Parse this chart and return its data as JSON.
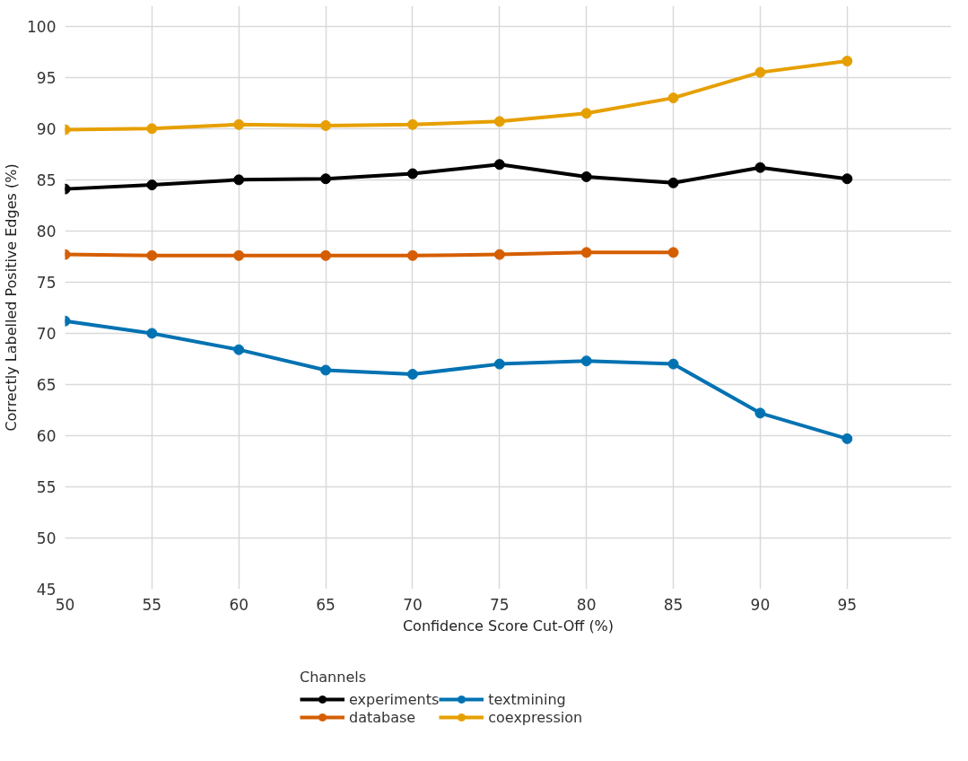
{
  "chart_data": {
    "type": "line",
    "xlabel": "Confidence Score Cut-Off (%)",
    "ylabel": "Correctly Labelled Positive Edges (%)",
    "legend_title": "Channels",
    "x": [
      50,
      55,
      60,
      65,
      70,
      75,
      80,
      85,
      90,
      95
    ],
    "series": [
      {
        "name": "experiments",
        "color": "#000000",
        "values": [
          84.1,
          84.5,
          85.0,
          85.1,
          85.6,
          86.5,
          85.3,
          84.7,
          86.2,
          85.1
        ]
      },
      {
        "name": "database",
        "color": "#d55e00",
        "values": [
          77.7,
          77.6,
          77.6,
          77.6,
          77.6,
          77.7,
          77.9,
          77.9,
          null,
          null
        ]
      },
      {
        "name": "textmining",
        "color": "#0072b2",
        "values": [
          71.2,
          70.0,
          68.4,
          66.4,
          66.0,
          67.0,
          67.3,
          67.0,
          62.2,
          59.7
        ]
      },
      {
        "name": "coexpression",
        "color": "#e69f00",
        "values": [
          89.9,
          90.0,
          90.4,
          90.3,
          90.4,
          90.7,
          91.5,
          93.0,
          95.5,
          96.6
        ]
      }
    ],
    "xlim": [
      50,
      101
    ],
    "ylim": [
      45,
      102
    ],
    "xticks": [
      50,
      55,
      60,
      65,
      70,
      75,
      80,
      85,
      90,
      95
    ],
    "yticks": [
      45,
      50,
      55,
      60,
      65,
      70,
      75,
      80,
      85,
      90,
      95,
      100
    ],
    "grid": true,
    "legend": "bottom",
    "marker": "circle",
    "line_style": "solid"
  }
}
